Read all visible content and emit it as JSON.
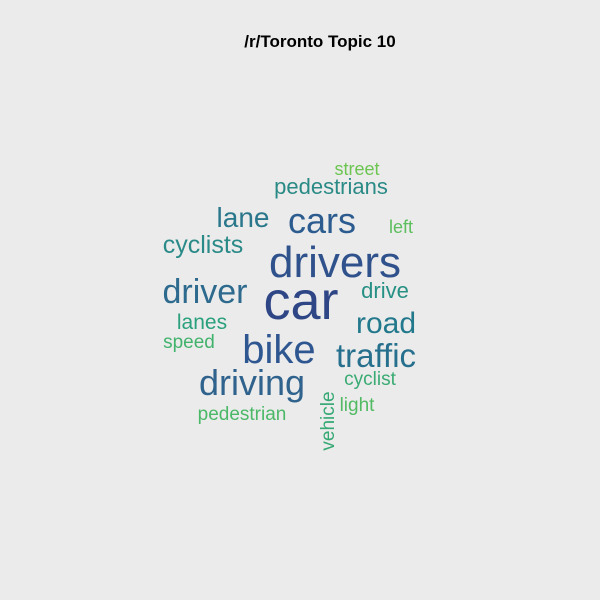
{
  "chart_data": {
    "type": "wordcloud",
    "title": "/r/Toronto Topic 10",
    "palette": "viridis",
    "words": [
      {
        "text": "car",
        "weight": 1.0,
        "color": "#2f4686"
      },
      {
        "text": "drivers",
        "weight": 0.78,
        "color": "#30528c"
      },
      {
        "text": "bike",
        "weight": 0.72,
        "color": "#2e5690"
      },
      {
        "text": "cars",
        "weight": 0.66,
        "color": "#2c5c8f"
      },
      {
        "text": "driving",
        "weight": 0.62,
        "color": "#2f628c"
      },
      {
        "text": "driver",
        "weight": 0.6,
        "color": "#2d6a8e"
      },
      {
        "text": "traffic",
        "weight": 0.6,
        "color": "#26708e"
      },
      {
        "text": "road",
        "weight": 0.55,
        "color": "#23798c"
      },
      {
        "text": "lane",
        "weight": 0.48,
        "color": "#2a778c"
      },
      {
        "text": "cyclists",
        "weight": 0.43,
        "color": "#2a8a88"
      },
      {
        "text": "pedestrians",
        "weight": 0.38,
        "color": "#2a8a86"
      },
      {
        "text": "drive",
        "weight": 0.38,
        "color": "#279084"
      },
      {
        "text": "lanes",
        "weight": 0.33,
        "color": "#2aa07c"
      },
      {
        "text": "cyclist",
        "weight": 0.32,
        "color": "#3aab73"
      },
      {
        "text": "vehicle",
        "weight": 0.32,
        "color": "#35a874"
      },
      {
        "text": "speed",
        "weight": 0.3,
        "color": "#42b36d"
      },
      {
        "text": "pedestrian",
        "weight": 0.3,
        "color": "#4bb868"
      },
      {
        "text": "light",
        "weight": 0.3,
        "color": "#52ba63"
      },
      {
        "text": "left",
        "weight": 0.28,
        "color": "#5cbe5d"
      },
      {
        "text": "street",
        "weight": 0.28,
        "color": "#6cc551"
      }
    ]
  }
}
